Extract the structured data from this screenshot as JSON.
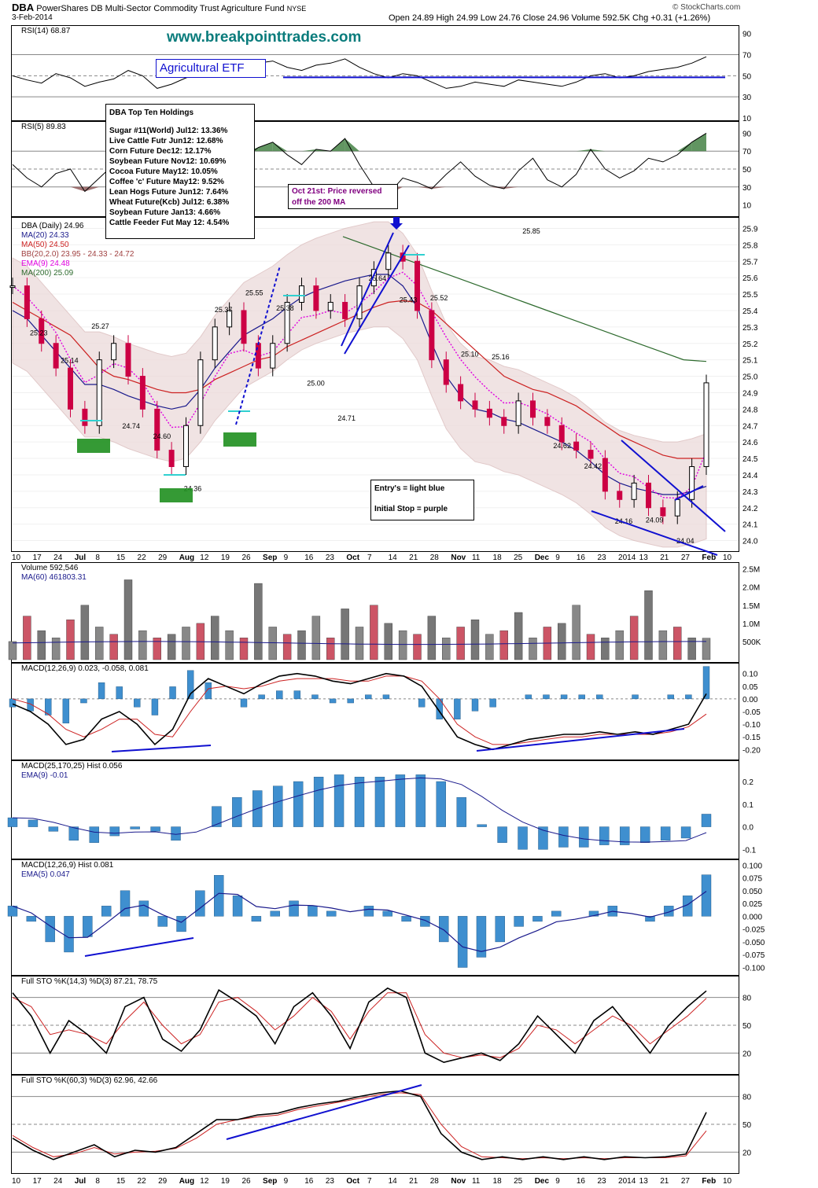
{
  "header": {
    "symbol": "DBA",
    "name": "PowerShares DB Multi-Sector Commodity Trust Agriculture Fund",
    "exchange": "NYSE",
    "date": "3-Feb-2014",
    "watermark": "© StockCharts.com",
    "quote": "Open 24.89  High 24.99  Low 24.76  Close 24.96  Volume 592.5K  Chg +0.31 (+1.26%)"
  },
  "annotations": {
    "website": "www.breakpointtrades.com",
    "etf_label": "Agricultural ETF",
    "holdings_title": "DBA Top Ten Holdings",
    "holdings": [
      "Sugar #11(World) Jul12: 13.36%",
      "Live Cattle Futr Jun12: 12.68%",
      "Corn Future Dec12: 12.17%",
      "Soybean Future Nov12: 10.69%",
      "Cocoa Future May12: 10.05%",
      "Coffee 'c' Future May12: 9.52%",
      "Lean Hogs Future Jun12: 7.64%",
      "Wheat Future(Kcb) Jul12: 6.38%",
      "Soybean Future Jan13: 4.66%",
      "Cattle Feeder Fut May 12: 4.54%"
    ],
    "reversal_note": "Oct 21st: Price reversed off the 200 MA",
    "entry_note": "Entry's = light blue",
    "stop_note": "Initial Stop = purple"
  },
  "colors": {
    "price_up": "#000000",
    "price_down": "#cc0044",
    "ma20": "#1a1a8c",
    "ma50": "#cc2222",
    "ma200": "#2d6a2d",
    "ema9": "#e000e0",
    "bb_fill": "#ecdada",
    "hist": "#3f8fcf",
    "trend": "#1010d0",
    "entry": "#30d0d0",
    "green_box": "#1f8f1f"
  },
  "chart_data": [
    {
      "type": "line",
      "title": "RSI(14) 68.87",
      "ylim": [
        10,
        95
      ],
      "y_ticks": [
        "90",
        "70",
        "50",
        "30",
        "10"
      ],
      "series": [
        {
          "name": "RSI(14)",
          "values": [
            50,
            46,
            43,
            52,
            48,
            40,
            44,
            47,
            55,
            50,
            38,
            42,
            48,
            52,
            55,
            60,
            58,
            62,
            64,
            58,
            55,
            60,
            62,
            66,
            58,
            52,
            48,
            52,
            50,
            44,
            38,
            40,
            44,
            42,
            40,
            46,
            44,
            42,
            40,
            44,
            50,
            52,
            48,
            50,
            54,
            56,
            58,
            62,
            68
          ]
        }
      ]
    },
    {
      "type": "line",
      "title": "RSI(5) 89.83",
      "ylim": [
        0,
        100
      ],
      "y_ticks": [
        "90",
        "70",
        "50",
        "30",
        "10"
      ],
      "series": [
        {
          "name": "RSI(5)",
          "values": [
            55,
            40,
            30,
            45,
            50,
            25,
            40,
            55,
            72,
            50,
            30,
            45,
            65,
            70,
            60,
            78,
            62,
            74,
            80,
            66,
            55,
            72,
            70,
            84,
            55,
            30,
            22,
            40,
            35,
            28,
            44,
            58,
            42,
            32,
            28,
            48,
            62,
            38,
            30,
            44,
            72,
            50,
            40,
            48,
            62,
            58,
            66,
            80,
            90
          ]
        }
      ]
    },
    {
      "type": "line",
      "title": "DBA (Daily) 24.96",
      "ylim": [
        23.95,
        25.95
      ],
      "y_ticks": [
        "25.9",
        "25.8",
        "25.7",
        "25.6",
        "25.5",
        "25.4",
        "25.3",
        "25.2",
        "25.1",
        "25.0",
        "24.9",
        "24.8",
        "24.7",
        "24.6",
        "24.5",
        "24.4",
        "24.3",
        "24.2",
        "24.1",
        "24.0"
      ],
      "x_ticks": [
        "10",
        "17",
        "24",
        "Jul",
        "8",
        "15",
        "22",
        "29",
        "Aug",
        "12",
        "19",
        "26",
        "Sep",
        "9",
        "16",
        "23",
        "Oct",
        "7",
        "14",
        "21",
        "28",
        "Nov",
        "11",
        "18",
        "25",
        "Dec",
        "9",
        "16",
        "23",
        "2014",
        "13",
        "21",
        "27",
        "Feb",
        "10"
      ],
      "legend": [
        "MA(20) 24.33",
        "MA(50) 24.50",
        "BB(20,2.0) 23.95 - 24.33 - 24.72",
        "EMA(9) 24.48",
        "MA(200) 25.09"
      ],
      "price_labels": [
        "25.23",
        "25.14",
        "25.27",
        "24.74",
        "24.60",
        "24.36",
        "25.37",
        "25.55",
        "25.38",
        "25.00",
        "24.71",
        "25.64",
        "25.43",
        "25.52",
        "25.10",
        "25.16",
        "25.85",
        "24.62",
        "24.42",
        "24.16",
        "24.09",
        "24.04"
      ],
      "series": [
        {
          "name": "Close",
          "values": [
            25.55,
            25.35,
            25.2,
            25.05,
            24.8,
            24.7,
            25.1,
            25.2,
            25.0,
            24.8,
            24.55,
            24.45,
            24.7,
            25.1,
            25.3,
            25.4,
            25.2,
            25.05,
            25.2,
            25.45,
            25.55,
            25.4,
            25.45,
            25.35,
            25.55,
            25.65,
            25.75,
            25.7,
            25.4,
            25.1,
            24.95,
            24.85,
            24.8,
            24.75,
            24.7,
            24.85,
            24.75,
            24.7,
            24.6,
            24.55,
            24.5,
            24.3,
            24.25,
            24.35,
            24.2,
            24.15,
            24.25,
            24.45,
            24.96
          ]
        },
        {
          "name": "MA(20) 24.33",
          "values": [
            25.4,
            25.35,
            25.25,
            25.15,
            25.05,
            24.95,
            24.95,
            24.92,
            24.88,
            24.85,
            24.82,
            24.8,
            24.82,
            24.92,
            25.05,
            25.15,
            25.25,
            25.3,
            25.35,
            25.42,
            25.48,
            25.52,
            25.55,
            25.58,
            25.6,
            25.62,
            25.62,
            25.55,
            25.42,
            25.2,
            25.0,
            24.88,
            24.8,
            24.78,
            24.74,
            24.72,
            24.68,
            24.64,
            24.6,
            24.55,
            24.48,
            24.4,
            24.35,
            24.32,
            24.3,
            24.28,
            24.28,
            24.3,
            24.33
          ]
        },
        {
          "name": "MA(50) 24.50",
          "values": [
            25.45,
            25.4,
            25.35,
            25.3,
            25.25,
            25.15,
            25.05,
            25.0,
            24.98,
            24.95,
            24.92,
            24.9,
            24.9,
            24.92,
            24.98,
            25.02,
            25.06,
            25.1,
            25.12,
            25.18,
            25.22,
            25.26,
            25.3,
            25.34,
            25.38,
            25.42,
            25.45,
            25.46,
            25.45,
            25.4,
            25.32,
            25.24,
            25.16,
            25.08,
            25.0,
            24.96,
            24.92,
            24.9,
            24.86,
            24.82,
            24.76,
            24.7,
            24.64,
            24.6,
            24.56,
            24.52,
            24.5,
            24.5,
            24.5
          ]
        },
        {
          "name": "MA(200) 25.09",
          "values": [
            25.85,
            25.8,
            25.75,
            25.7,
            25.65,
            25.6,
            25.55,
            25.5,
            25.45,
            25.4,
            25.35,
            25.3,
            25.25,
            25.2,
            25.15,
            25.1,
            25.09
          ]
        }
      ]
    },
    {
      "type": "bar",
      "title": "Volume 592,546",
      "ylim": [
        0,
        2600000
      ],
      "y_ticks": [
        "2.5M",
        "2.0M",
        "1.5M",
        "1.0M",
        "500K"
      ],
      "legend": [
        "MA(60) 461803.31"
      ],
      "values": [
        500000,
        1200000,
        800000,
        600000,
        1100000,
        1500000,
        900000,
        700000,
        2200000,
        800000,
        600000,
        700000,
        900000,
        1000000,
        1200000,
        800000,
        600000,
        2100000,
        900000,
        700000,
        800000,
        1200000,
        600000,
        1400000,
        900000,
        1500000,
        1000000,
        800000,
        700000,
        1200000,
        600000,
        900000,
        1100000,
        700000,
        800000,
        1300000,
        600000,
        900000,
        1000000,
        1500000,
        700000,
        600000,
        800000,
        1200000,
        1900000,
        800000,
        900000,
        600000,
        592546
      ]
    },
    {
      "type": "line",
      "title": "MACD(12,26,9) 0.023, -0.058, 0.081",
      "ylim": [
        -0.23,
        0.13
      ],
      "y_ticks": [
        "0.10",
        "0.05",
        "0.00",
        "-0.05",
        "-0.10",
        "-0.15",
        "-0.20"
      ],
      "series": [
        {
          "name": "MACD(12,26,9)",
          "values": [
            -0.02,
            -0.05,
            -0.1,
            -0.18,
            -0.16,
            -0.08,
            -0.05,
            -0.1,
            -0.18,
            -0.12,
            0.02,
            0.08,
            0.05,
            0.02,
            0.06,
            0.09,
            0.1,
            0.09,
            0.07,
            0.06,
            0.08,
            0.1,
            0.09,
            0.05,
            -0.05,
            -0.15,
            -0.18,
            -0.2,
            -0.18,
            -0.16,
            -0.15,
            -0.14,
            -0.14,
            -0.13,
            -0.14,
            -0.13,
            -0.14,
            -0.12,
            -0.1,
            0.02
          ]
        },
        {
          "name": "Signal",
          "values": [
            0.0,
            -0.02,
            -0.06,
            -0.12,
            -0.15,
            -0.12,
            -0.08,
            -0.08,
            -0.14,
            -0.15,
            -0.05,
            0.04,
            0.05,
            0.04,
            0.05,
            0.07,
            0.08,
            0.08,
            0.08,
            0.07,
            0.07,
            0.09,
            0.09,
            0.07,
            0.0,
            -0.1,
            -0.15,
            -0.18,
            -0.18,
            -0.17,
            -0.16,
            -0.15,
            -0.15,
            -0.14,
            -0.14,
            -0.14,
            -0.14,
            -0.13,
            -0.11,
            -0.06
          ]
        }
      ]
    },
    {
      "type": "bar",
      "title": "MACD(25,170,25) Hist 0.056",
      "ylim": [
        -0.13,
        0.28
      ],
      "y_ticks": [
        "0.2",
        "0.1",
        "0.0",
        "-0.1"
      ],
      "legend": [
        "EMA(9) -0.01"
      ],
      "values": [
        0.04,
        0.03,
        -0.02,
        -0.06,
        -0.07,
        -0.04,
        -0.01,
        -0.02,
        -0.06,
        0.0,
        0.09,
        0.13,
        0.16,
        0.18,
        0.2,
        0.22,
        0.23,
        0.22,
        0.22,
        0.23,
        0.23,
        0.2,
        0.13,
        0.01,
        -0.07,
        -0.1,
        -0.1,
        -0.09,
        -0.09,
        -0.08,
        -0.08,
        -0.07,
        -0.06,
        -0.05,
        0.056
      ]
    },
    {
      "type": "bar",
      "title": "MACD(12,26,9) Hist 0.081",
      "ylim": [
        -0.11,
        0.105
      ],
      "y_ticks": [
        "0.100",
        "0.075",
        "0.050",
        "0.025",
        "0.000",
        "-0.025",
        "-0.050",
        "-0.075",
        "-0.100"
      ],
      "legend": [
        "EMA(5) 0.047"
      ],
      "values": [
        0.02,
        -0.01,
        -0.05,
        -0.07,
        -0.04,
        0.02,
        0.05,
        0.03,
        -0.02,
        -0.03,
        0.05,
        0.08,
        0.04,
        -0.01,
        0.01,
        0.03,
        0.02,
        0.01,
        0.0,
        0.02,
        0.01,
        -0.01,
        -0.02,
        -0.05,
        -0.1,
        -0.08,
        -0.05,
        -0.02,
        -0.01,
        0.01,
        0.0,
        0.01,
        0.02,
        0.0,
        -0.01,
        0.02,
        0.04,
        0.081
      ]
    },
    {
      "type": "line",
      "title": "Full STO %K(14,3) %D(3) 87.21, 78.75",
      "ylim": [
        0,
        100
      ],
      "y_ticks": [
        "80",
        "50",
        "20"
      ],
      "series": [
        {
          "name": "%K",
          "values": [
            85,
            60,
            20,
            55,
            40,
            20,
            70,
            80,
            35,
            22,
            45,
            88,
            75,
            60,
            30,
            70,
            85,
            60,
            25,
            75,
            90,
            80,
            20,
            10,
            15,
            20,
            12,
            30,
            60,
            40,
            20,
            55,
            70,
            45,
            20,
            50,
            70,
            87
          ]
        },
        {
          "name": "%D",
          "values": [
            80,
            70,
            40,
            45,
            40,
            30,
            55,
            75,
            50,
            30,
            40,
            75,
            80,
            65,
            45,
            60,
            80,
            65,
            35,
            65,
            85,
            85,
            40,
            20,
            15,
            18,
            15,
            25,
            50,
            45,
            30,
            45,
            60,
            50,
            30,
            45,
            60,
            79
          ]
        }
      ]
    },
    {
      "type": "line",
      "title": "Full STO %K(60,3) %D(3) 62.96, 42.66",
      "ylim": [
        0,
        100
      ],
      "y_ticks": [
        "80",
        "50",
        "20"
      ],
      "series": [
        {
          "name": "%K",
          "values": [
            35,
            22,
            12,
            20,
            28,
            15,
            22,
            20,
            25,
            40,
            55,
            55,
            60,
            62,
            68,
            72,
            75,
            80,
            84,
            86,
            80,
            40,
            20,
            12,
            15,
            12,
            15,
            12,
            15,
            12,
            15,
            14,
            15,
            18,
            63
          ]
        },
        {
          "name": "%D",
          "values": [
            38,
            25,
            15,
            18,
            25,
            18,
            20,
            21,
            24,
            35,
            50,
            55,
            58,
            60,
            66,
            70,
            74,
            78,
            82,
            84,
            82,
            50,
            26,
            15,
            14,
            13,
            14,
            13,
            14,
            13,
            14,
            14,
            14,
            16,
            43
          ]
        }
      ]
    }
  ]
}
